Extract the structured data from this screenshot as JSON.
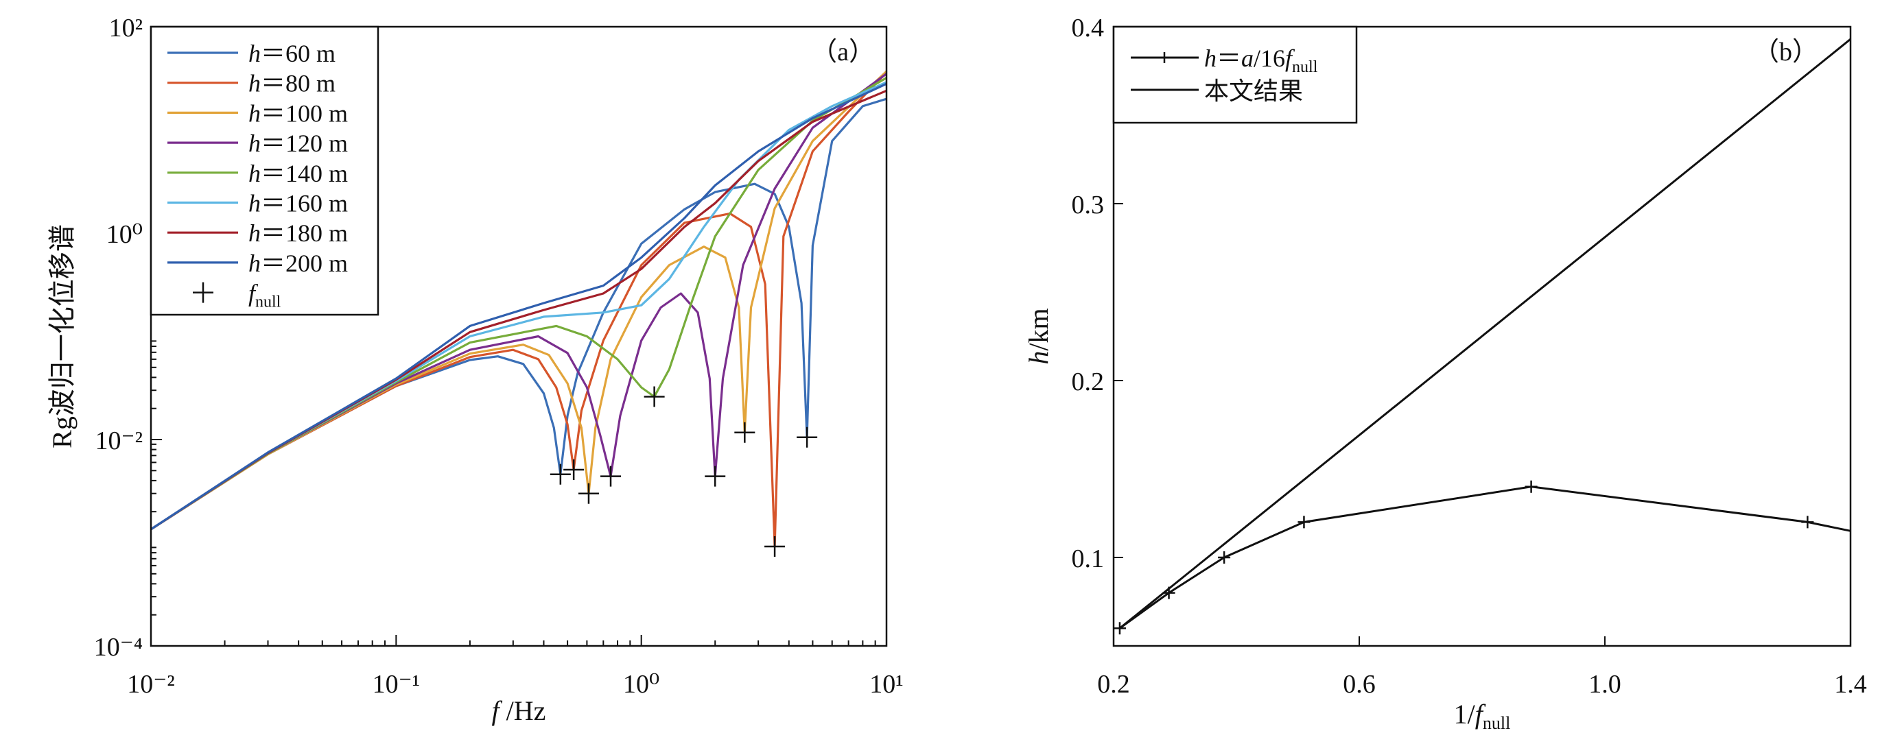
{
  "chart_data": [
    {
      "type": "line",
      "panel_label": "（a）",
      "xlabel": {
        "main": "f",
        "rest": " /Hz"
      },
      "ylabel": "Rg波归一化位移谱",
      "xscale": "log",
      "yscale": "log",
      "xlim": [
        0.01,
        10
      ],
      "ylim": [
        0.0001,
        100
      ],
      "xticks": [
        {
          "v": 0.01,
          "label": "10⁻²"
        },
        {
          "v": 0.1,
          "label": "10⁻¹"
        },
        {
          "v": 1,
          "label": "10⁰"
        },
        {
          "v": 10,
          "label": "10¹"
        }
      ],
      "yticks": [
        {
          "v": 0.0001,
          "label": "10⁻⁴"
        },
        {
          "v": 0.01,
          "label": "10⁻²"
        },
        {
          "v": 1,
          "label": "10⁰"
        },
        {
          "v": 100,
          "label": "10²"
        }
      ],
      "legend_position": "top-left",
      "series": [
        {
          "name": "h＝60 m",
          "color": "#3b6fb6",
          "points": [
            [
              0.01,
              0.00135
            ],
            [
              0.03,
              0.0072
            ],
            [
              0.1,
              0.033
            ],
            [
              0.2,
              0.059
            ],
            [
              0.26,
              0.064
            ],
            [
              0.33,
              0.054
            ],
            [
              0.4,
              0.028
            ],
            [
              0.44,
              0.013
            ],
            [
              0.468,
              0.0046
            ],
            [
              0.5,
              0.017
            ],
            [
              0.55,
              0.044
            ],
            [
              0.7,
              0.17
            ],
            [
              1.0,
              0.79
            ],
            [
              1.5,
              1.7
            ],
            [
              2.0,
              2.5
            ],
            [
              2.9,
              3.0
            ],
            [
              3.5,
              2.4
            ],
            [
              4.0,
              1.15
            ],
            [
              4.5,
              0.21
            ],
            [
              4.74,
              0.0105
            ],
            [
              5.0,
              0.76
            ],
            [
              6.0,
              7.8
            ],
            [
              8.0,
              17
            ],
            [
              10,
              20
            ]
          ]
        },
        {
          "name": "h＝80 m",
          "color": "#d6552b",
          "points": [
            [
              0.01,
              0.00135
            ],
            [
              0.03,
              0.0072
            ],
            [
              0.1,
              0.033
            ],
            [
              0.2,
              0.063
            ],
            [
              0.3,
              0.074
            ],
            [
              0.38,
              0.06
            ],
            [
              0.45,
              0.032
            ],
            [
              0.5,
              0.014
            ],
            [
              0.53,
              0.0051
            ],
            [
              0.57,
              0.019
            ],
            [
              0.7,
              0.091
            ],
            [
              1.0,
              0.49
            ],
            [
              1.5,
              1.26
            ],
            [
              2.3,
              1.55
            ],
            [
              2.8,
              1.15
            ],
            [
              3.2,
              0.32
            ],
            [
              3.5,
              0.00092
            ],
            [
              3.8,
              0.93
            ],
            [
              5,
              6.2
            ],
            [
              7,
              15
            ],
            [
              10,
              36
            ]
          ]
        },
        {
          "name": "h＝100 m",
          "color": "#e2a43a",
          "points": [
            [
              0.01,
              0.00135
            ],
            [
              0.03,
              0.0072
            ],
            [
              0.1,
              0.034
            ],
            [
              0.2,
              0.068
            ],
            [
              0.33,
              0.083
            ],
            [
              0.42,
              0.066
            ],
            [
              0.5,
              0.035
            ],
            [
              0.57,
              0.013
            ],
            [
              0.61,
              0.003
            ],
            [
              0.65,
              0.013
            ],
            [
              0.75,
              0.06
            ],
            [
              1.0,
              0.24
            ],
            [
              1.3,
              0.49
            ],
            [
              1.8,
              0.74
            ],
            [
              2.2,
              0.58
            ],
            [
              2.5,
              0.19
            ],
            [
              2.64,
              0.0117
            ],
            [
              2.8,
              0.19
            ],
            [
              3.5,
              1.74
            ],
            [
              5,
              7.8
            ],
            [
              10,
              37
            ]
          ]
        },
        {
          "name": "h＝120 m",
          "color": "#7a2e8e",
          "points": [
            [
              0.01,
              0.00135
            ],
            [
              0.03,
              0.0073
            ],
            [
              0.1,
              0.035
            ],
            [
              0.2,
              0.074
            ],
            [
              0.38,
              0.1
            ],
            [
              0.5,
              0.069
            ],
            [
              0.6,
              0.032
            ],
            [
              0.68,
              0.011
            ],
            [
              0.75,
              0.0044
            ],
            [
              0.82,
              0.017
            ],
            [
              1.0,
              0.091
            ],
            [
              1.2,
              0.19
            ],
            [
              1.45,
              0.26
            ],
            [
              1.7,
              0.17
            ],
            [
              1.9,
              0.039
            ],
            [
              2.0,
              0.0044
            ],
            [
              2.15,
              0.039
            ],
            [
              2.6,
              0.49
            ],
            [
              3.5,
              2.7
            ],
            [
              5,
              10.5
            ],
            [
              10,
              35
            ]
          ]
        },
        {
          "name": "h＝140 m",
          "color": "#77ac3a",
          "points": [
            [
              0.01,
              0.00135
            ],
            [
              0.03,
              0.0073
            ],
            [
              0.1,
              0.036
            ],
            [
              0.2,
              0.087
            ],
            [
              0.45,
              0.126
            ],
            [
              0.6,
              0.1
            ],
            [
              0.8,
              0.06
            ],
            [
              1.0,
              0.032
            ],
            [
              1.13,
              0.026
            ],
            [
              1.3,
              0.048
            ],
            [
              1.6,
              0.21
            ],
            [
              2.0,
              0.93
            ],
            [
              3.0,
              4.1
            ],
            [
              5,
              12.3
            ],
            [
              10,
              32
            ]
          ]
        },
        {
          "name": "h＝160 m",
          "color": "#5cb6e3",
          "points": [
            [
              0.01,
              0.00135
            ],
            [
              0.03,
              0.0074
            ],
            [
              0.1,
              0.037
            ],
            [
              0.2,
              0.1
            ],
            [
              0.4,
              0.155
            ],
            [
              0.7,
              0.17
            ],
            [
              1.0,
              0.2
            ],
            [
              1.3,
              0.36
            ],
            [
              1.8,
              1.15
            ],
            [
              2.5,
              3.3
            ],
            [
              4,
              10
            ],
            [
              6,
              17
            ],
            [
              10,
              29
            ]
          ]
        },
        {
          "name": "h＝180 m",
          "color": "#a3202a",
          "points": [
            [
              0.01,
              0.00135
            ],
            [
              0.03,
              0.0074
            ],
            [
              0.1,
              0.038
            ],
            [
              0.2,
              0.11
            ],
            [
              0.4,
              0.18
            ],
            [
              0.7,
              0.26
            ],
            [
              1.0,
              0.45
            ],
            [
              1.5,
              1.15
            ],
            [
              2.0,
              1.95
            ],
            [
              3.0,
              5.0
            ],
            [
              5,
              12
            ],
            [
              10,
              24
            ]
          ]
        },
        {
          "name": "h＝200 m",
          "color": "#2f5fae",
          "points": [
            [
              0.01,
              0.00135
            ],
            [
              0.03,
              0.0075
            ],
            [
              0.1,
              0.039
            ],
            [
              0.2,
              0.126
            ],
            [
              0.4,
              0.21
            ],
            [
              0.7,
              0.31
            ],
            [
              1.0,
              0.58
            ],
            [
              1.5,
              1.4
            ],
            [
              2.0,
              2.9
            ],
            [
              3.0,
              6.2
            ],
            [
              5,
              13
            ],
            [
              10,
              28
            ]
          ]
        }
      ],
      "nulls": {
        "name": {
          "main": "f",
          "sub": "null"
        },
        "marker": "+",
        "points": [
          [
            0.468,
            0.0046
          ],
          [
            0.53,
            0.0051
          ],
          [
            0.61,
            0.003
          ],
          [
            0.75,
            0.0044
          ],
          [
            1.13,
            0.026
          ],
          [
            2.0,
            0.0044
          ],
          [
            2.64,
            0.0117
          ],
          [
            3.5,
            0.00092
          ],
          [
            4.74,
            0.0105
          ]
        ]
      }
    },
    {
      "type": "line",
      "panel_label": "（b）",
      "xlabel": {
        "main": "1/",
        "italic": "f",
        "sub": "null"
      },
      "ylabel": {
        "italic": "h",
        "rest": "/km"
      },
      "xlim": [
        0.2,
        1.4
      ],
      "ylim": [
        0.05,
        0.4
      ],
      "xticks": [
        {
          "v": 0.2,
          "label": "0.2"
        },
        {
          "v": 0.6,
          "label": "0.6"
        },
        {
          "v": 1.0,
          "label": "1.0"
        },
        {
          "v": 1.4,
          "label": "1.4"
        }
      ],
      "yticks": [
        {
          "v": 0.1,
          "label": "0.1"
        },
        {
          "v": 0.2,
          "label": "0.2"
        },
        {
          "v": 0.3,
          "label": "0.3"
        },
        {
          "v": 0.4,
          "label": "0.4"
        }
      ],
      "legend_position": "top-left",
      "series": [
        {
          "name": {
            "italic": "h",
            "mid": "＝",
            "italic2": "a",
            "rest": "/16",
            "italic3": "f",
            "sub": "null"
          },
          "color": "#111111",
          "marker": "+",
          "points": [
            [
              0.21,
              0.06
            ],
            [
              0.29,
              0.08
            ],
            [
              0.38,
              0.1
            ],
            [
              0.51,
              0.12
            ],
            [
              0.88,
              0.14
            ],
            [
              1.33,
              0.12
            ],
            [
              1.4,
              0.115
            ]
          ],
          "marked": [
            true,
            true,
            true,
            true,
            true,
            true,
            false
          ]
        },
        {
          "name": "本文结果",
          "color": "#111111",
          "marker": "none",
          "points": [
            [
              0.21,
              0.06
            ],
            [
              1.4,
              0.393
            ]
          ]
        }
      ]
    }
  ]
}
